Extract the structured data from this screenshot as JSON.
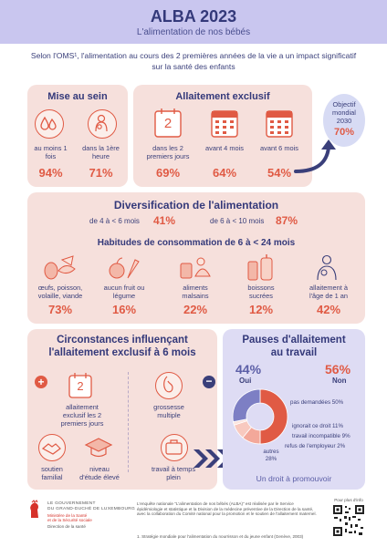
{
  "header": {
    "title": "ALBA 2023",
    "subtitle": "L'alimentation de nos bébés"
  },
  "intro": "Selon l'OMS¹, l'alimentation au cours des 2 premières années de la vie a un impact significatif sur la santé des enfants",
  "mise_au_sein": {
    "title": "Mise au sein",
    "items": [
      {
        "label": "au moins 1 fois",
        "value": "94%"
      },
      {
        "label": "dans la 1ère heure",
        "value": "71%"
      }
    ]
  },
  "allaitement_exclusif": {
    "title": "Allaitement exclusif",
    "calendar_number": "2",
    "items": [
      {
        "label": "dans les 2 premiers jours",
        "value": "69%"
      },
      {
        "label": "avant 4 mois",
        "value": "64%"
      },
      {
        "label": "avant 6 mois",
        "value": "54%"
      }
    ]
  },
  "objectif": {
    "line1": "Objectif",
    "line2": "mondial",
    "year": "2030",
    "value": "70%"
  },
  "diversification": {
    "title": "Diversification de l'alimentation",
    "left_label": "de 4 à < 6 mois",
    "left_value": "41%",
    "right_label": "de 6 à < 10 mois",
    "right_value": "87%"
  },
  "habitudes": {
    "title": "Habitudes de consommation de 6 à < 24 mois",
    "items": [
      {
        "label": "œufs, poisson, volaille, viande",
        "value": "73%"
      },
      {
        "label": "aucun fruit ou légume",
        "value": "16%"
      },
      {
        "label": "aliments malsains",
        "value": "22%"
      },
      {
        "label": "boissons sucrées",
        "value": "12%"
      },
      {
        "label": "allaitement à l'âge de 1 an",
        "value": "42%"
      }
    ]
  },
  "circonstances": {
    "title_line1": "Circonstances influençant",
    "title_line2": "l'allaitement exclusif à 6 mois",
    "calendar_number": "2",
    "items": [
      {
        "label": "allaitement exclusif les 2 premiers jours"
      },
      {
        "label": "grossesse multiple"
      },
      {
        "label": "soutien familial"
      },
      {
        "label": "niveau d'étude élevé"
      },
      {
        "label": "travail à temps plein"
      }
    ]
  },
  "pauses": {
    "title_line1": "Pauses d'allaitement",
    "title_line2": "au travail",
    "oui_value": "44%",
    "oui_label": "Oui",
    "non_value": "56%",
    "non_label": "Non",
    "segments": [
      {
        "label": "pas demandées 50%",
        "value": 50,
        "color": "#e05a44"
      },
      {
        "label": "ignorait ce droit 11%",
        "value": 11,
        "color": "#f3a89a"
      },
      {
        "label": "travail incompatible 9%",
        "value": 9,
        "color": "#f8c9bf"
      },
      {
        "label": "refus de l'employeur 2%",
        "value": 2,
        "color": "#fde4de"
      },
      {
        "label": "autres 28%",
        "value": 28,
        "color": "#7d7fc4"
      }
    ],
    "footer": "Un droit à promouvoir"
  },
  "footer": {
    "gov_line1": "LE GOUVERNEMENT",
    "gov_line2": "DU GRAND-DUCHÉ DE LUXEMBOURG",
    "gov_line3": "Ministère de la Santé",
    "gov_line4": "et de la Sécurité sociale",
    "gov_line5": "Direction de la santé",
    "text": "L'enquête nationale \"L'alimentation de nos bébés (ALBA)\" est réalisée par le Service épidémiologie et statistique et la Division de la médecine préventive de la Direction de la santé, avec la collaboration du Comité national pour la promotion et le soutien de l'allaitement maternel.",
    "note": "1. Stratégie mondiale pour l'alimentation du nourrisson et du jeune enfant (Genève, 2003)",
    "qr_label": "Pour plus d'info"
  }
}
